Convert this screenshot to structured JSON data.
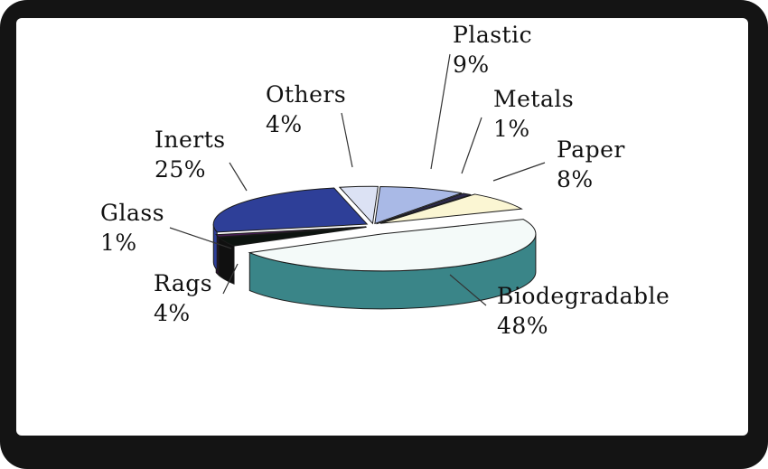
{
  "chart_data": {
    "type": "pie",
    "style": "3d-exploded",
    "title": "",
    "slices": [
      {
        "label": "Plastic",
        "value": 9,
        "display": "9%",
        "color": "#a9b9e6"
      },
      {
        "label": "Metals",
        "value": 1,
        "display": "1%",
        "color": "#2e2a4e"
      },
      {
        "label": "Paper",
        "value": 8,
        "display": "8%",
        "color": "#fbf6d3"
      },
      {
        "label": "Biodegradable",
        "value": 48,
        "display": "48%",
        "color": "#f4faf9"
      },
      {
        "label": "Rags",
        "value": 4,
        "display": "4%",
        "color": "#0d1410"
      },
      {
        "label": "Glass",
        "value": 1,
        "display": "1%",
        "color": "#4a1f56"
      },
      {
        "label": "Inerts",
        "value": 25,
        "display": "25%",
        "color": "#2e3f98"
      },
      {
        "label": "Others",
        "value": 4,
        "display": "4%",
        "color": "#dce2f4"
      }
    ],
    "side_colors": {
      "Biodegradable": "#3a8588",
      "Rags": "#101010",
      "Glass": "#2a1030"
    },
    "legend": "none"
  }
}
